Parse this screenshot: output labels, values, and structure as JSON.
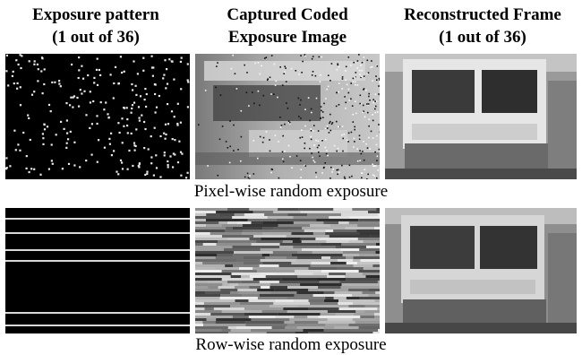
{
  "headers": [
    [
      "Exposure pattern",
      "(1 out of 36)"
    ],
    [
      "Captured Coded",
      "Exposure Image"
    ],
    [
      "Reconstructed Frame",
      "(1 out of 36)"
    ]
  ],
  "rows": [
    {
      "caption": "Pixel-wise random exposure"
    },
    {
      "caption": "Row-wise random exposure"
    }
  ]
}
